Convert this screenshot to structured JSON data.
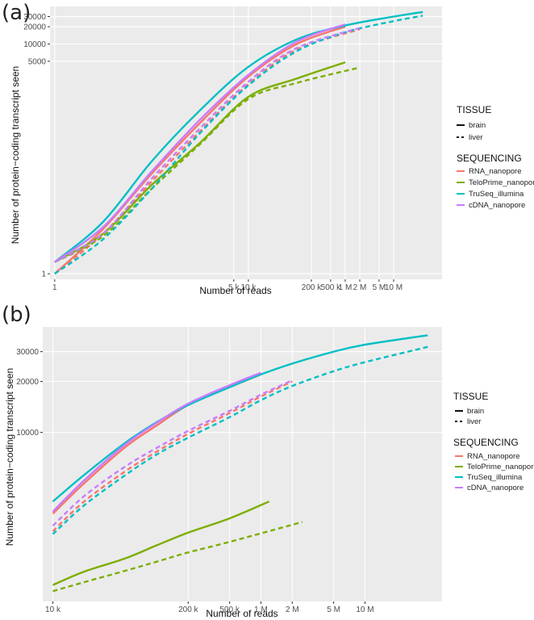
{
  "chart_data": [
    {
      "panel": "(a)",
      "type": "line",
      "xscale": "log",
      "yscale": "log",
      "xlabel": "Number of reads",
      "ylabel": "Number of protein−coding transcript seen",
      "xlim": [
        0.8,
        100000000
      ],
      "ylim": [
        0.8,
        45000
      ],
      "x_ticks": [
        {
          "v": 1,
          "label": "1"
        },
        {
          "v": 5000,
          "label": "5 k"
        },
        {
          "v": 10000,
          "label": "10 k"
        },
        {
          "v": 200000,
          "label": "200 k"
        },
        {
          "v": 500000,
          "label": "500 k"
        },
        {
          "v": 1000000,
          "label": "1 M"
        },
        {
          "v": 2000000,
          "label": "2 M"
        },
        {
          "v": 5000000,
          "label": "5 M"
        },
        {
          "v": 10000000,
          "label": "10 M"
        }
      ],
      "y_ticks": [
        {
          "v": 1,
          "label": "1"
        },
        {
          "v": 5000,
          "label": "5000"
        },
        {
          "v": 10000,
          "label": "10000"
        },
        {
          "v": 20000,
          "label": "20000"
        },
        {
          "v": 30000,
          "label": "30000"
        }
      ],
      "series": [
        {
          "name": "RNA_nanopore",
          "tissue": "brain",
          "color": "#F8766D",
          "x": [
            1,
            10,
            100,
            1000,
            10000,
            100000,
            1000000
          ],
          "y": [
            1,
            6,
            55,
            420,
            2700,
            10000,
            20000
          ]
        },
        {
          "name": "RNA_nanopore",
          "tissue": "liver",
          "color": "#F8766D",
          "x": [
            1,
            10,
            100,
            1000,
            10000,
            100000,
            2000000
          ],
          "y": [
            1,
            5,
            40,
            300,
            2000,
            8000,
            18000
          ]
        },
        {
          "name": "TeloPrime_nanopore",
          "tissue": "brain",
          "color": "#7CAE00",
          "x": [
            1,
            10,
            100,
            1000,
            10000,
            100000,
            1000000
          ],
          "y": [
            1.6,
            5,
            35,
            190,
            1200,
            2500,
            4800
          ]
        },
        {
          "name": "TeloPrime_nanopore",
          "tissue": "liver",
          "color": "#7CAE00",
          "x": [
            1,
            10,
            100,
            1000,
            10000,
            100000,
            2000000
          ],
          "y": [
            1.6,
            4.5,
            30,
            180,
            1100,
            2100,
            3900
          ]
        },
        {
          "name": "TruSeq_illumina",
          "tissue": "brain",
          "color": "#00BFC4",
          "x": [
            1,
            10,
            100,
            1000,
            10000,
            100000,
            1000000,
            10000000,
            40000000
          ],
          "y": [
            1.6,
            8,
            90,
            700,
            4000,
            12000,
            21000,
            30000,
            36000
          ]
        },
        {
          "name": "TruSeq_illumina",
          "tissue": "liver",
          "color": "#00BFC4",
          "x": [
            1,
            10,
            100,
            1000,
            10000,
            100000,
            1000000,
            10000000,
            40000000
          ],
          "y": [
            1,
            4,
            30,
            280,
            1900,
            7500,
            16000,
            25000,
            31000
          ]
        },
        {
          "name": "cDNA_nanopore",
          "tissue": "brain",
          "color": "#C77CFF",
          "x": [
            1,
            10,
            100,
            1000,
            10000,
            100000,
            1000000
          ],
          "y": [
            1.6,
            6.5,
            60,
            480,
            2900,
            11000,
            22000
          ]
        },
        {
          "name": "cDNA_nanopore",
          "tissue": "liver",
          "color": "#C77CFF",
          "x": [
            1,
            10,
            100,
            1000,
            10000,
            100000,
            2000000
          ],
          "y": [
            1.6,
            5,
            45,
            340,
            2200,
            8500,
            19000
          ]
        }
      ]
    },
    {
      "panel": "(b)",
      "type": "line",
      "xscale": "log",
      "yscale": "log",
      "xlabel": "Number of reads",
      "ylabel": "Number of protein−coding transcript seen",
      "xlim": [
        8000,
        55000000
      ],
      "ylim": [
        1000,
        42000
      ],
      "x_ticks": [
        {
          "v": 10000,
          "label": "10 k"
        },
        {
          "v": 200000,
          "label": "200 k"
        },
        {
          "v": 500000,
          "label": "500 k"
        },
        {
          "v": 1000000,
          "label": "1 M"
        },
        {
          "v": 2000000,
          "label": "2 M"
        },
        {
          "v": 5000000,
          "label": "5 M"
        },
        {
          "v": 10000000,
          "label": "10 M"
        }
      ],
      "y_ticks": [
        {
          "v": 10000,
          "label": "10000"
        },
        {
          "v": 20000,
          "label": "20000"
        },
        {
          "v": 30000,
          "label": "30000"
        }
      ],
      "series": [
        {
          "name": "RNA_nanopore",
          "tissue": "brain",
          "color": "#F8766D",
          "x": [
            10000,
            20000,
            50000,
            100000,
            200000,
            500000,
            1000000
          ],
          "y": [
            3300,
            5000,
            8200,
            11000,
            14500,
            18500,
            22000
          ]
        },
        {
          "name": "RNA_nanopore",
          "tissue": "liver",
          "color": "#F8766D",
          "x": [
            10000,
            20000,
            50000,
            100000,
            200000,
            500000,
            1000000,
            2000000
          ],
          "y": [
            2600,
            3900,
            5900,
            7700,
            9800,
            13000,
            16300,
            20000
          ]
        },
        {
          "name": "TeloPrime_nanopore",
          "tissue": "brain",
          "color": "#7CAE00",
          "x": [
            10000,
            20000,
            50000,
            100000,
            200000,
            500000,
            1200000
          ],
          "y": [
            1250,
            1500,
            1800,
            2150,
            2550,
            3100,
            3900
          ]
        },
        {
          "name": "TeloPrime_nanopore",
          "tissue": "liver",
          "color": "#7CAE00",
          "x": [
            10000,
            20000,
            50000,
            100000,
            200000,
            500000,
            2500000
          ],
          "y": [
            1150,
            1300,
            1520,
            1720,
            1950,
            2250,
            2950
          ]
        },
        {
          "name": "TruSeq_illumina",
          "tissue": "brain",
          "color": "#00BFC4",
          "x": [
            10000,
            20000,
            50000,
            100000,
            200000,
            500000,
            1000000,
            2000000,
            5000000,
            10000000,
            40000000
          ],
          "y": [
            3900,
            5600,
            8700,
            11500,
            14500,
            18500,
            22000,
            25500,
            30000,
            33000,
            37500
          ]
        },
        {
          "name": "TruSeq_illumina",
          "tissue": "liver",
          "color": "#00BFC4",
          "x": [
            10000,
            20000,
            50000,
            100000,
            200000,
            500000,
            1000000,
            2000000,
            5000000,
            10000000,
            40000000
          ],
          "y": [
            2500,
            3700,
            5600,
            7400,
            9300,
            12300,
            15500,
            18800,
            23000,
            26000,
            32000
          ]
        },
        {
          "name": "cDNA_nanopore",
          "tissue": "brain",
          "color": "#C77CFF",
          "x": [
            10000,
            20000,
            50000,
            100000,
            200000,
            500000,
            1000000
          ],
          "y": [
            3400,
            5200,
            8500,
            11400,
            14800,
            19000,
            22500
          ]
        },
        {
          "name": "cDNA_nanopore",
          "tissue": "liver",
          "color": "#C77CFF",
          "x": [
            10000,
            20000,
            50000,
            100000,
            200000,
            500000,
            1000000,
            2000000
          ],
          "y": [
            2800,
            4200,
            6300,
            8100,
            10200,
            13400,
            16700,
            20300
          ]
        }
      ]
    }
  ],
  "legend": {
    "tissue_title": "TISSUE",
    "tissue_items": [
      {
        "label": "brain",
        "dash": "solid"
      },
      {
        "label": "liver",
        "dash": "dashed"
      }
    ],
    "sequencing_title": "SEQUENCING",
    "sequencing_items": [
      {
        "label": "RNA_nanopore",
        "color": "#F8766D"
      },
      {
        "label": "TeloPrime_nanopore",
        "color": "#7CAE00"
      },
      {
        "label": "TruSeq_illumina",
        "color": "#00BFC4"
      },
      {
        "label": "cDNA_nanopore",
        "color": "#C77CFF"
      }
    ]
  },
  "colors": {
    "panel_bg": "#EBEBEB",
    "grid_major": "#FFFFFF",
    "axis_text": "#4D4D4D"
  }
}
